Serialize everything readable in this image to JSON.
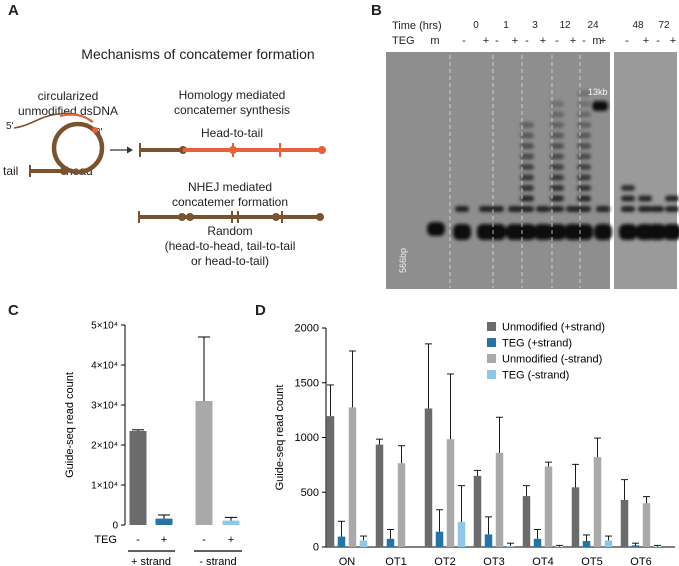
{
  "panel_a": {
    "letter": "A",
    "title": "Mechanisms of concatemer formation",
    "circle_label_line1": "circularized",
    "circle_label_line2": "unmodified dsDNA",
    "five_prime": "5'",
    "three_prime": "3'",
    "homology_line1": "Homology mediated",
    "homology_line2": "concatemer synthesis",
    "head_to_tail": "Head-to-tail",
    "tail": "tail",
    "head": "head",
    "nhej_line1": "NHEJ mediated",
    "nhej_line2": "concatemer formation",
    "random": "Random",
    "random_detail1": "(head-to-head, tail-to-tail",
    "random_detail2": "or head-to-tail)",
    "colors": {
      "brown": "#7a5230",
      "orange": "#e8603a"
    }
  },
  "panel_b": {
    "letter": "B",
    "time_label": "Time (hrs)",
    "teg_label": "TEG",
    "marker": "m",
    "times": [
      "0",
      "1",
      "3",
      "12",
      "24",
      "48",
      "72"
    ],
    "signs": [
      "-",
      "+"
    ],
    "ladder_13kb": "13kb",
    "ladder_566bp": "566bp"
  },
  "chart_data": [
    {
      "type": "bar",
      "panel": "C",
      "ylabel": "Guide-seq read count",
      "xlabel": "TEG",
      "ylim": [
        0,
        50000
      ],
      "yticks": [
        "0",
        "1×10⁴",
        "2×10⁴",
        "3×10⁴",
        "4×10⁴",
        "5×10⁴"
      ],
      "categories": [
        "-",
        "+",
        "-",
        "+"
      ],
      "groups": [
        "+ strand",
        "- strand"
      ],
      "values": [
        23500,
        1600,
        31000,
        1100
      ],
      "errors": [
        300,
        900,
        16000,
        800
      ],
      "colors": [
        "#6b6b6b",
        "#2474a6",
        "#a9a9a9",
        "#8ec8e6"
      ]
    },
    {
      "type": "bar",
      "panel": "D",
      "ylabel": "Guide-seq read count",
      "ylim": [
        0,
        2000
      ],
      "yticks": [
        "0",
        "500",
        "1000",
        "1500",
        "2000"
      ],
      "categories": [
        "ON",
        "OT1",
        "OT2",
        "OT3",
        "OT4",
        "OT5",
        "OT6"
      ],
      "legend_position": "top-right",
      "series": [
        {
          "name": "Unmodified (+strand)",
          "color": "#6b6b6b",
          "values": [
            1195,
            935,
            1265,
            650,
            465,
            545,
            430
          ],
          "errors": [
            285,
            50,
            590,
            50,
            95,
            210,
            185
          ]
        },
        {
          "name": "TEG (+strand)",
          "color": "#2474a6",
          "values": [
            95,
            75,
            140,
            115,
            75,
            55,
            15
          ],
          "errors": [
            140,
            85,
            200,
            160,
            85,
            55,
            20
          ]
        },
        {
          "name": "Unmodified (-strand)",
          "color": "#a9a9a9",
          "values": [
            1275,
            765,
            985,
            860,
            735,
            820,
            400
          ],
          "errors": [
            515,
            160,
            595,
            325,
            40,
            175,
            60
          ]
        },
        {
          "name": "TEG (-strand)",
          "color": "#8ec8e6",
          "values": [
            60,
            0,
            230,
            10,
            5,
            60,
            5
          ],
          "errors": [
            40,
            0,
            330,
            25,
            10,
            40,
            10
          ]
        }
      ]
    }
  ]
}
